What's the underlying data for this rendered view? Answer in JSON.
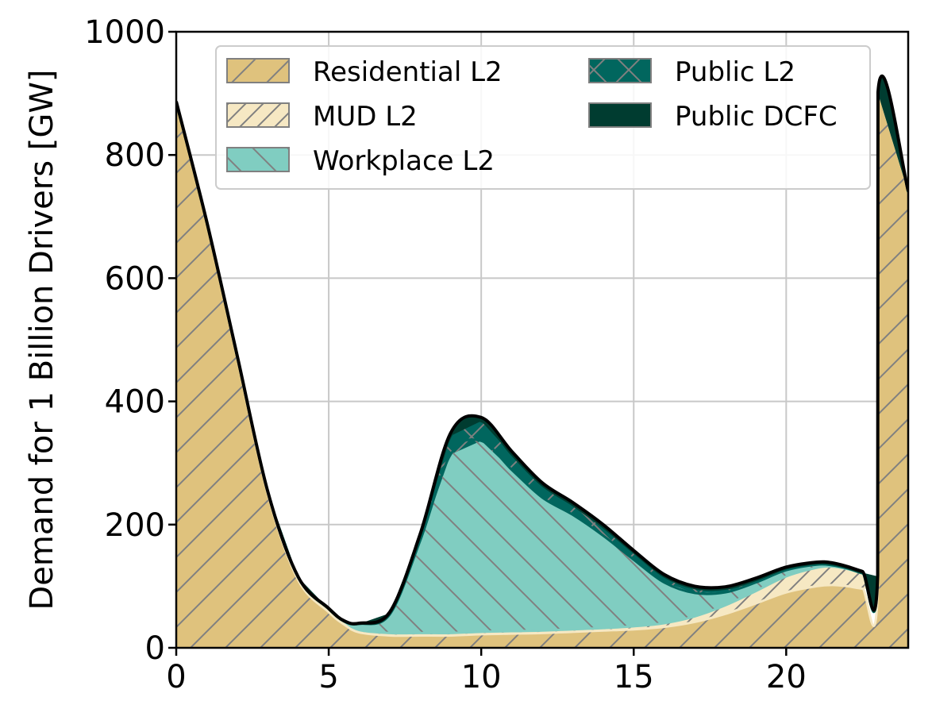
{
  "chart_data": {
    "type": "area",
    "stacked": true,
    "xlabel": "",
    "ylabel": "Demand for 1 Billion Drivers [GW]",
    "xlim": [
      0,
      24
    ],
    "ylim": [
      0,
      1000
    ],
    "xticks": [
      0,
      5,
      10,
      15,
      20
    ],
    "yticks": [
      0,
      200,
      400,
      600,
      800,
      1000
    ],
    "grid": true,
    "legend_position": "top",
    "x": [
      0,
      1,
      2,
      3,
      4,
      5,
      5.5,
      6,
      7,
      8,
      9,
      10,
      11,
      12,
      13,
      14,
      15,
      16,
      17,
      18,
      19,
      20,
      21,
      21.5,
      22,
      22.5,
      23,
      23.01,
      24
    ],
    "series": [
      {
        "name": "Residential L2",
        "color": "#dfc27d",
        "hatch": "/",
        "values": [
          885,
          690,
          470,
          250,
          110,
          58,
          38,
          25,
          20,
          20,
          20,
          22,
          23,
          24,
          26,
          28,
          30,
          34,
          42,
          55,
          72,
          90,
          100,
          102,
          100,
          96,
          95,
          900,
          740
        ]
      },
      {
        "name": "MUD L2",
        "color": "#f6e8c3",
        "hatch": "//",
        "values": [
          0,
          0,
          2,
          3,
          4,
          5,
          5,
          4,
          4,
          4,
          4,
          4,
          4,
          4,
          4,
          4,
          5,
          6,
          9,
          14,
          20,
          26,
          30,
          30,
          28,
          25,
          20,
          0,
          0
        ]
      },
      {
        "name": "Workplace L2",
        "color": "#80cdc1",
        "hatch": "\\",
        "values": [
          0,
          0,
          0,
          0,
          0,
          0,
          0,
          10,
          30,
          150,
          290,
          310,
          262,
          216,
          186,
          150,
          108,
          66,
          38,
          21,
          14,
          10,
          5,
          2,
          1,
          0,
          0,
          0,
          0
        ]
      },
      {
        "name": "Public L2",
        "color": "#01665e",
        "hatch": "x",
        "values": [
          0,
          0,
          0,
          0,
          0,
          0,
          0,
          0,
          2,
          8,
          30,
          32,
          25,
          20,
          16,
          14,
          12,
          10,
          8,
          6,
          4,
          3,
          2,
          2,
          1,
          1,
          1,
          0,
          0
        ]
      },
      {
        "name": "Public DCFC",
        "color": "#003c30",
        "hatch": "",
        "values": [
          2,
          2,
          2,
          1,
          1,
          1,
          1,
          1,
          2,
          3,
          5,
          6,
          5,
          4,
          4,
          4,
          3,
          3,
          3,
          3,
          3,
          2,
          2,
          2,
          2,
          2,
          2,
          2,
          2
        ]
      }
    ],
    "total_line_color": "#000000"
  },
  "legend": {
    "items": [
      {
        "label": "Residential L2",
        "color": "#dfc27d",
        "hatch": "/"
      },
      {
        "label": "MUD L2",
        "color": "#f6e8c3",
        "hatch": "//"
      },
      {
        "label": "Workplace L2",
        "color": "#80cdc1",
        "hatch": "\\"
      },
      {
        "label": "Public L2",
        "color": "#01665e",
        "hatch": "x"
      },
      {
        "label": "Public DCFC",
        "color": "#003c30",
        "hatch": ""
      }
    ]
  }
}
